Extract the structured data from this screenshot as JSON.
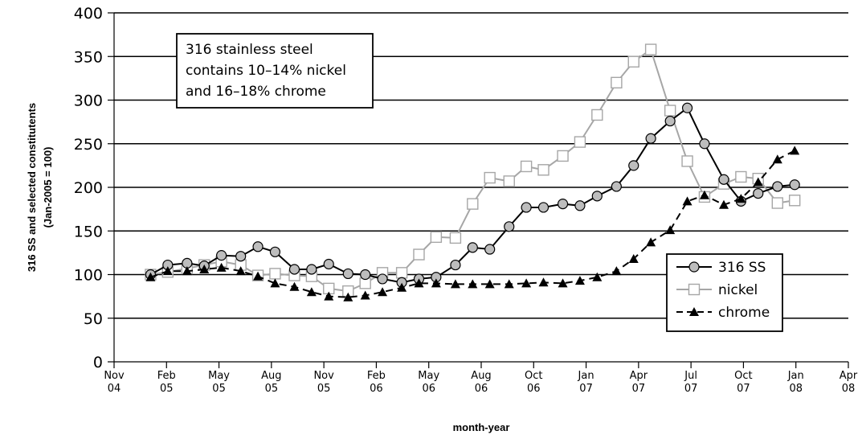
{
  "chart_data": {
    "type": "line",
    "xlabel": "month-year",
    "ylabel_line1": "316 SS and selected constitutents",
    "ylabel_line2": "(Jan-2005 = 100)",
    "ylim": [
      0,
      400
    ],
    "y_ticks": [
      0,
      50,
      100,
      150,
      200,
      250,
      300,
      350,
      400
    ],
    "x_ticks": [
      {
        "line1": "Nov",
        "line2": "04"
      },
      {
        "line1": "Feb",
        "line2": "05"
      },
      {
        "line1": "May",
        "line2": "05"
      },
      {
        "line1": "Aug",
        "line2": "05"
      },
      {
        "line1": "Nov",
        "line2": "05"
      },
      {
        "line1": "Feb",
        "line2": "06"
      },
      {
        "line1": "May",
        "line2": "06"
      },
      {
        "line1": "Aug",
        "line2": "06"
      },
      {
        "line1": "Oct",
        "line2": "06"
      },
      {
        "line1": "Jan",
        "line2": "07"
      },
      {
        "line1": "Apr",
        "line2": "07"
      },
      {
        "line1": "Jul",
        "line2": "07"
      },
      {
        "line1": "Oct",
        "line2": "07"
      },
      {
        "line1": "Jan",
        "line2": "08"
      },
      {
        "line1": "Apr",
        "line2": "08"
      }
    ],
    "annotation": [
      "316 stainless steel",
      "contains 10–14% nickel",
      "and 16–18% chrome"
    ],
    "legend_position": "bottom-right",
    "grid": "horizontal",
    "series": [
      {
        "name": "316 SS",
        "color": "#000000",
        "marker": "circle",
        "marker_fill": "#bdbdbd",
        "dash": "solid",
        "values": [
          [
            2005.0,
            100
          ],
          [
            2005.08,
            111
          ],
          [
            2005.17,
            113
          ],
          [
            2005.25,
            110
          ],
          [
            2005.33,
            122
          ],
          [
            2005.42,
            121
          ],
          [
            2005.5,
            132
          ],
          [
            2005.58,
            126
          ],
          [
            2005.67,
            106
          ],
          [
            2005.75,
            106
          ],
          [
            2005.83,
            112
          ],
          [
            2005.92,
            101
          ],
          [
            2006.0,
            100
          ],
          [
            2006.08,
            95
          ],
          [
            2006.17,
            91
          ],
          [
            2006.25,
            95
          ],
          [
            2006.33,
            97
          ],
          [
            2006.42,
            111
          ],
          [
            2006.5,
            131
          ],
          [
            2006.58,
            129
          ],
          [
            2006.67,
            155
          ],
          [
            2006.75,
            177
          ],
          [
            2006.83,
            177
          ],
          [
            2006.92,
            181
          ],
          [
            2007.0,
            179
          ],
          [
            2007.08,
            190
          ],
          [
            2007.17,
            201
          ],
          [
            2007.25,
            225
          ],
          [
            2007.33,
            256
          ],
          [
            2007.42,
            276
          ],
          [
            2007.5,
            291
          ],
          [
            2007.58,
            250
          ],
          [
            2007.67,
            209
          ],
          [
            2007.75,
            184
          ],
          [
            2007.83,
            193
          ],
          [
            2007.92,
            201
          ],
          [
            2008.0,
            203
          ]
        ]
      },
      {
        "name": "nickel",
        "color": "#a6a6a6",
        "marker": "square",
        "marker_fill": "#ffffff",
        "dash": "solid",
        "values": [
          [
            2005.0,
            100
          ],
          [
            2005.08,
            103
          ],
          [
            2005.17,
            107
          ],
          [
            2005.25,
            111
          ],
          [
            2005.33,
            115
          ],
          [
            2005.42,
            111
          ],
          [
            2005.5,
            99
          ],
          [
            2005.58,
            101
          ],
          [
            2005.67,
            99
          ],
          [
            2005.75,
            98
          ],
          [
            2005.83,
            84
          ],
          [
            2005.92,
            81
          ],
          [
            2006.0,
            90
          ],
          [
            2006.08,
            102
          ],
          [
            2006.17,
            102
          ],
          [
            2006.25,
            123
          ],
          [
            2006.33,
            143
          ],
          [
            2006.42,
            142
          ],
          [
            2006.5,
            181
          ],
          [
            2006.58,
            211
          ],
          [
            2006.67,
            207
          ],
          [
            2006.75,
            224
          ],
          [
            2006.83,
            220
          ],
          [
            2006.92,
            236
          ],
          [
            2007.0,
            252
          ],
          [
            2007.08,
            283
          ],
          [
            2007.17,
            320
          ],
          [
            2007.25,
            344
          ],
          [
            2007.33,
            358
          ],
          [
            2007.42,
            288
          ],
          [
            2007.5,
            230
          ],
          [
            2007.58,
            189
          ],
          [
            2007.67,
            204
          ],
          [
            2007.75,
            212
          ],
          [
            2007.83,
            210
          ],
          [
            2007.92,
            182
          ],
          [
            2008.0,
            185
          ]
        ]
      },
      {
        "name": "chrome",
        "color": "#000000",
        "marker": "triangle",
        "marker_fill": "#000000",
        "dash": "dashed",
        "values": [
          [
            2005.0,
            97
          ],
          [
            2005.08,
            104
          ],
          [
            2005.17,
            104
          ],
          [
            2005.25,
            106
          ],
          [
            2005.33,
            108
          ],
          [
            2005.42,
            104
          ],
          [
            2005.5,
            98
          ],
          [
            2005.58,
            90
          ],
          [
            2005.67,
            86
          ],
          [
            2005.75,
            80
          ],
          [
            2005.83,
            75
          ],
          [
            2005.92,
            74
          ],
          [
            2006.0,
            76
          ],
          [
            2006.08,
            80
          ],
          [
            2006.17,
            85
          ],
          [
            2006.25,
            90
          ],
          [
            2006.33,
            90
          ],
          [
            2006.42,
            89
          ],
          [
            2006.5,
            89
          ],
          [
            2006.58,
            89
          ],
          [
            2006.67,
            89
          ],
          [
            2006.75,
            90
          ],
          [
            2006.83,
            91
          ],
          [
            2006.92,
            90
          ],
          [
            2007.0,
            93
          ],
          [
            2007.08,
            97
          ],
          [
            2007.17,
            104
          ],
          [
            2007.25,
            118
          ],
          [
            2007.33,
            137
          ],
          [
            2007.42,
            151
          ],
          [
            2007.5,
            184
          ],
          [
            2007.58,
            191
          ],
          [
            2007.67,
            180
          ],
          [
            2007.75,
            187
          ],
          [
            2007.83,
            206
          ],
          [
            2007.92,
            232
          ],
          [
            2008.0,
            242
          ]
        ]
      }
    ]
  }
}
